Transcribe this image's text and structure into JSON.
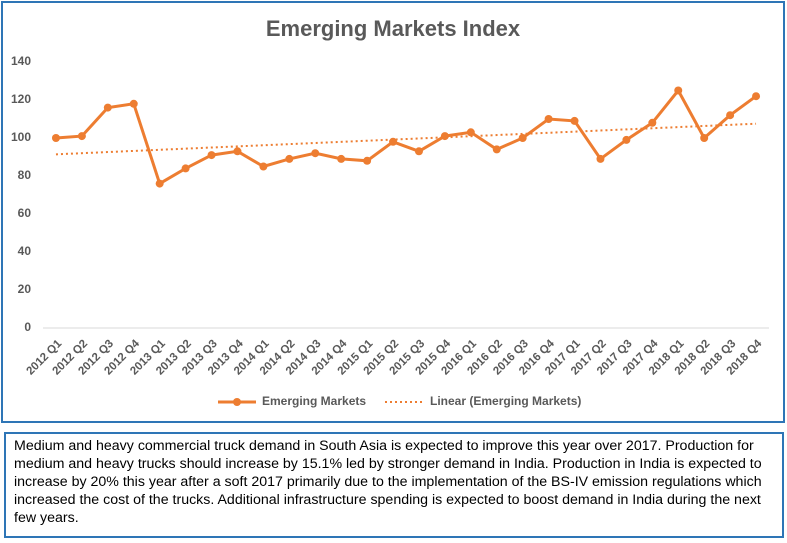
{
  "chart_data": {
    "type": "line",
    "title": "Emerging Markets Index",
    "categories": [
      "2012 Q1",
      "2012 Q2",
      "2012 Q3",
      "2012 Q4",
      "2013 Q1",
      "2013 Q2",
      "2013 Q3",
      "2013 Q4",
      "2014 Q1",
      "2014 Q2",
      "2014 Q3",
      "2014 Q4",
      "2015 Q1",
      "2015 Q2",
      "2015 Q3",
      "2015 Q4",
      "2016 Q1",
      "2016 Q2",
      "2016 Q3",
      "2016 Q4",
      "2017 Q1",
      "2017 Q2",
      "2017 Q3",
      "2017 Q4",
      "2018 Q1",
      "2018 Q2",
      "2018 Q3",
      "2018 Q4"
    ],
    "series": [
      {
        "name": "Emerging Markets",
        "color": "#ed7d31",
        "values": [
          100,
          101,
          116,
          118,
          76,
          84,
          91,
          93,
          85,
          89,
          92,
          89,
          88,
          98,
          93,
          101,
          103,
          94,
          100,
          110,
          109,
          89,
          99,
          108,
          125,
          100,
          112,
          122
        ]
      }
    ],
    "trendline": {
      "name": "Linear (Emerging Markets)",
      "type": "linear",
      "color": "#ed7d31"
    },
    "ylim": [
      0,
      140
    ],
    "yticks": [
      0,
      20,
      40,
      60,
      80,
      100,
      120,
      140
    ],
    "grid": false,
    "legend": "bottom"
  },
  "note": {
    "text": "Medium and heavy commercial truck demand in South Asia is expected to improve this year over 2017.  Production for medium and heavy trucks should increase by 15.1% led by stronger demand in India.  Production in India is expected to increase by 20% this year after a soft 2017 primarily due to the implementation of the BS-IV emission regulations which increased the cost of the trucks.  Additional infrastructure spending is expected to boost demand in India during the next few years."
  }
}
